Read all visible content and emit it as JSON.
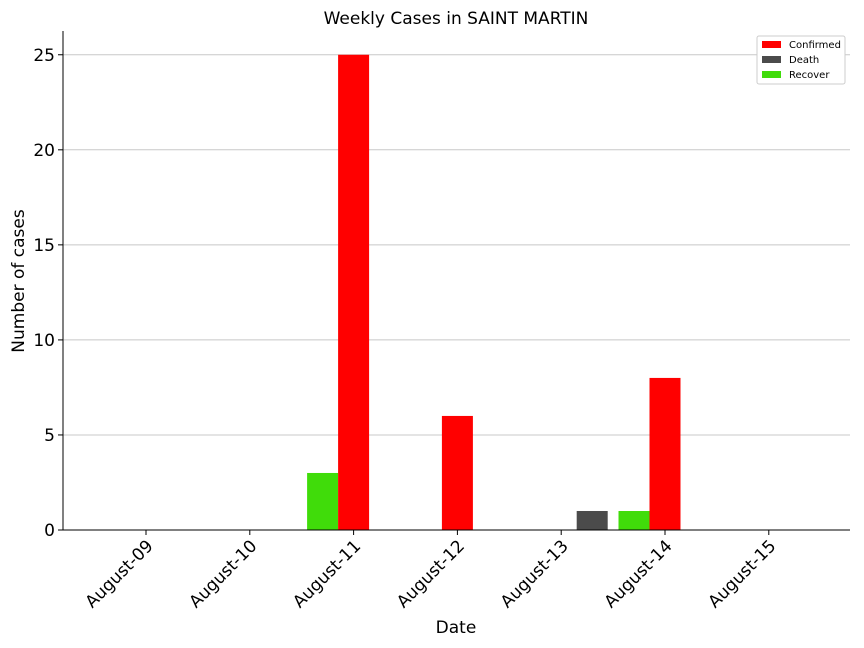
{
  "chart_data": {
    "type": "bar",
    "title": "Weekly Cases in SAINT MARTIN",
    "xlabel": "Date",
    "ylabel": "Number of cases",
    "categories": [
      "August-09",
      "August-10",
      "August-11",
      "August-12",
      "August-13",
      "August-14",
      "August-15"
    ],
    "series": [
      {
        "name": "Recover",
        "color": "#40dc0a",
        "values": [
          0,
          0,
          3,
          0,
          0,
          1,
          0
        ]
      },
      {
        "name": "Confirmed",
        "color": "#ff0000",
        "values": [
          0,
          0,
          25,
          6,
          0,
          8,
          0
        ]
      },
      {
        "name": "Death",
        "color": "#4b4b4b",
        "values": [
          0,
          0,
          0,
          0,
          1,
          0,
          0
        ]
      }
    ],
    "legend_order": [
      "Confirmed",
      "Death",
      "Recover"
    ],
    "ylim": [
      0,
      26.25
    ],
    "yticks": [
      0,
      5,
      10,
      15,
      20,
      25
    ],
    "grid": "horizontal",
    "legend_position": "top-right"
  }
}
